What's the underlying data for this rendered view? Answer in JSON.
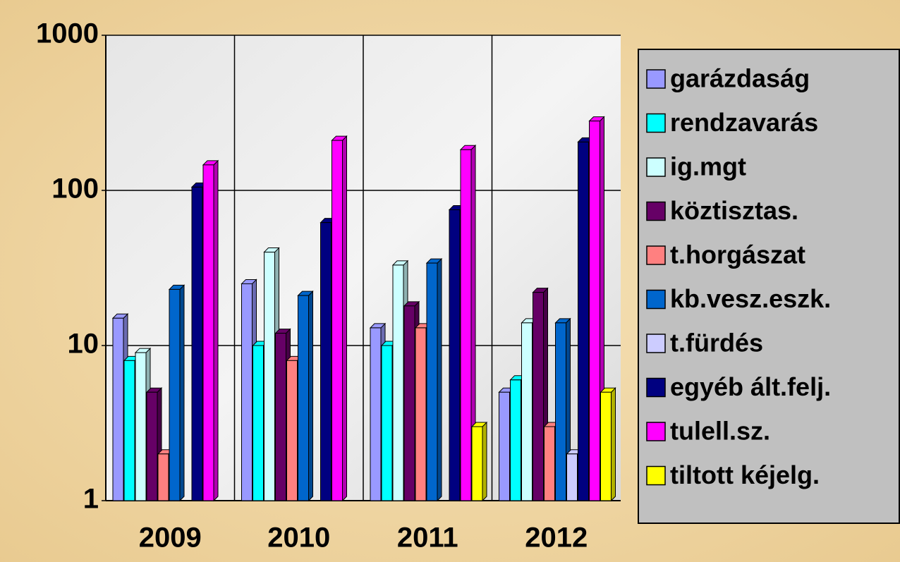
{
  "chart_data": {
    "type": "bar",
    "log_scale": true,
    "grid": true,
    "legend": "right",
    "categories": [
      "2009",
      "2010",
      "2011",
      "2012"
    ],
    "ylim": [
      1,
      1000
    ],
    "yticks": [
      1,
      10,
      100,
      1000
    ],
    "series": [
      {
        "name": "garázdaság",
        "color": "#9999ff",
        "values": [
          15,
          25,
          13,
          5
        ]
      },
      {
        "name": "rendzavarás",
        "color": "#00ffff",
        "values": [
          8,
          10,
          10,
          6
        ]
      },
      {
        "name": "ig.mgt",
        "color": "#ccffff",
        "values": [
          9,
          40,
          33,
          14
        ]
      },
      {
        "name": "köztisztas.",
        "color": "#660066",
        "values": [
          5,
          12,
          18,
          22
        ]
      },
      {
        "name": "t.horgászat",
        "color": "#ff8080",
        "values": [
          2,
          8,
          13,
          3
        ]
      },
      {
        "name": "kb.vesz.eszk.",
        "color": "#0066cc",
        "values": [
          23,
          21,
          34,
          14
        ]
      },
      {
        "name": "t.fürdés",
        "color": "#ccccff",
        "values": [
          null,
          null,
          null,
          2
        ]
      },
      {
        "name": "egyéb ált.felj.",
        "color": "#000080",
        "values": [
          105,
          62,
          75,
          205
        ]
      },
      {
        "name": "tulell.sz.",
        "color": "#ff00ff",
        "values": [
          146,
          210,
          183,
          280
        ]
      },
      {
        "name": "tiltott kéjelg.",
        "color": "#ffff00",
        "values": [
          null,
          null,
          3,
          5
        ]
      }
    ]
  }
}
